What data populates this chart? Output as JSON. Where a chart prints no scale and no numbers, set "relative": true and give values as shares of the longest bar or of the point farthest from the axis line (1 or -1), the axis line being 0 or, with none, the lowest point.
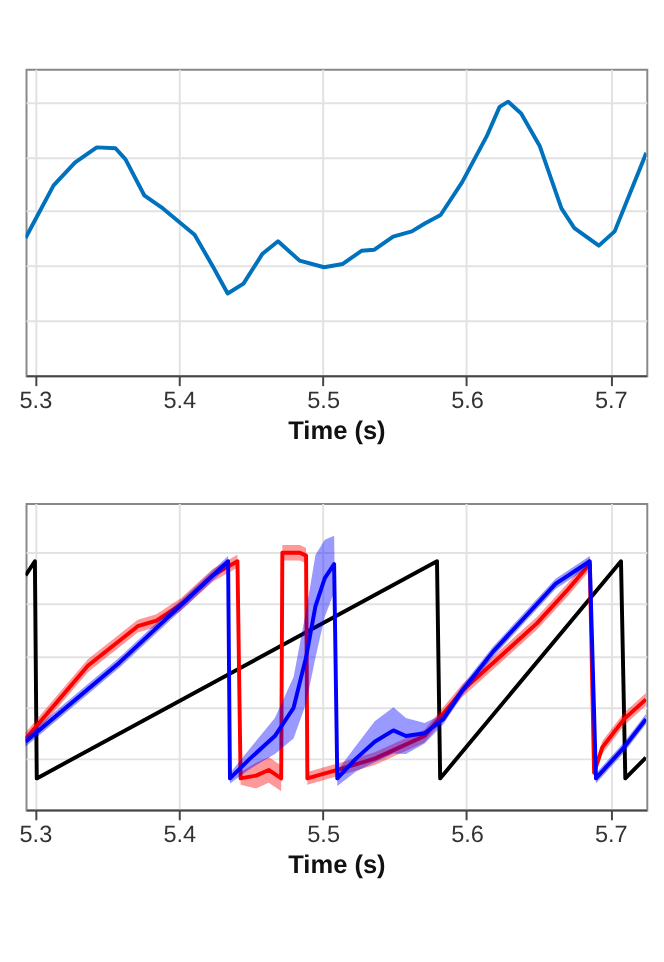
{
  "chart_data": [
    {
      "type": "line",
      "relative": true,
      "xlabel": "Time (s)",
      "xlim": [
        5.2935,
        5.725
      ],
      "xticks": [
        5.3,
        5.4,
        5.5,
        5.6,
        5.7
      ],
      "grid": true,
      "series": [
        {
          "color": "#0072bd",
          "x": [
            5.2935,
            5.302,
            5.313,
            5.328,
            5.343,
            5.356,
            5.363,
            5.376,
            5.389,
            5.411,
            5.424,
            5.434,
            5.445,
            5.458,
            5.469,
            5.484,
            5.501,
            5.514,
            5.527,
            5.536,
            5.549,
            5.562,
            5.571,
            5.582,
            5.597,
            5.614,
            5.623,
            5.629,
            5.638,
            5.651,
            5.666,
            5.675,
            5.692,
            5.703,
            5.714,
            5.725
          ],
          "values": [
            0.502,
            0.586,
            0.694,
            0.778,
            0.833,
            0.83,
            0.789,
            0.658,
            0.61,
            0.514,
            0.395,
            0.299,
            0.335,
            0.443,
            0.49,
            0.419,
            0.395,
            0.407,
            0.455,
            0.459,
            0.507,
            0.526,
            0.555,
            0.586,
            0.706,
            0.873,
            0.981,
            1.0,
            0.957,
            0.837,
            0.61,
            0.538,
            0.474,
            0.526,
            0.67,
            0.813
          ]
        }
      ]
    },
    {
      "type": "line",
      "relative": true,
      "xlabel": "Time (s)",
      "xlim": [
        5.2935,
        5.725
      ],
      "xticks": [
        5.3,
        5.4,
        5.5,
        5.6,
        5.7
      ],
      "grid": true,
      "series": [
        {
          "color": "#000000",
          "x": [
            5.2935,
            5.3,
            5.3013,
            5.5795,
            5.5817,
            5.7074,
            5.7104,
            5.7247
          ],
          "values": [
            0.912,
            0.967,
            0.121,
            0.967,
            0.121,
            0.967,
            0.121,
            0.202
          ]
        },
        {
          "color": "#ff0000",
          "x": [
            5.2935,
            5.3368,
            5.3715,
            5.3845,
            5.4018,
            5.4235,
            5.4408,
            5.443,
            5.4538,
            5.4625,
            5.4712,
            5.472,
            5.4842,
            5.4885,
            5.4894,
            5.5102,
            5.5362,
            5.5535,
            5.5709,
            5.5969,
            5.6229,
            5.6489,
            5.6705,
            5.6857,
            5.6887,
            5.6944,
            5.7095,
            5.7247
          ],
          "values": [
            0.275,
            0.56,
            0.714,
            0.736,
            0.8,
            0.912,
            0.967,
            0.121,
            0.132,
            0.154,
            0.121,
            1.0,
            1.0,
            0.989,
            0.121,
            0.154,
            0.198,
            0.242,
            0.286,
            0.462,
            0.593,
            0.725,
            0.857,
            0.956,
            0.143,
            0.242,
            0.352,
            0.429
          ],
          "lower": [
            0.25,
            0.535,
            0.689,
            0.711,
            0.775,
            0.887,
            0.942,
            0.096,
            0.082,
            0.104,
            0.071,
            0.97,
            0.97,
            0.959,
            0.096,
            0.129,
            0.173,
            0.217,
            0.261,
            0.437,
            0.568,
            0.7,
            0.832,
            0.931,
            0.118,
            0.217,
            0.327,
            0.404
          ],
          "upper": [
            0.3,
            0.585,
            0.739,
            0.761,
            0.825,
            0.937,
            0.992,
            0.146,
            0.182,
            0.204,
            0.171,
            1.03,
            1.03,
            1.019,
            0.146,
            0.179,
            0.223,
            0.267,
            0.311,
            0.487,
            0.618,
            0.75,
            0.882,
            0.981,
            0.168,
            0.267,
            0.377,
            0.454
          ]
        },
        {
          "color": "#0000ff",
          "x": [
            5.2935,
            5.3585,
            5.4343,
            5.4356,
            5.4495,
            5.4668,
            5.4798,
            5.4885,
            5.495,
            5.5015,
            5.508,
            5.5102,
            5.5232,
            5.5362,
            5.5492,
            5.5579,
            5.5709,
            5.5839,
            5.5969,
            5.6185,
            5.6402,
            5.6619,
            5.6857,
            5.69,
            5.7095,
            5.7247
          ],
          "values": [
            0.264,
            0.571,
            0.967,
            0.121,
            0.198,
            0.286,
            0.396,
            0.593,
            0.791,
            0.901,
            0.956,
            0.121,
            0.198,
            0.264,
            0.308,
            0.286,
            0.297,
            0.352,
            0.462,
            0.615,
            0.747,
            0.879,
            0.967,
            0.121,
            0.242,
            0.352
          ],
          "lower": [
            0.244,
            0.551,
            0.947,
            0.101,
            0.158,
            0.216,
            0.276,
            0.413,
            0.591,
            0.751,
            0.846,
            0.091,
            0.148,
            0.184,
            0.218,
            0.216,
            0.257,
            0.332,
            0.442,
            0.595,
            0.727,
            0.859,
            0.947,
            0.101,
            0.222,
            0.332
          ],
          "upper": [
            0.284,
            0.591,
            0.987,
            0.141,
            0.238,
            0.356,
            0.516,
            0.773,
            0.991,
            1.051,
            1.066,
            0.151,
            0.248,
            0.344,
            0.398,
            0.356,
            0.337,
            0.372,
            0.482,
            0.635,
            0.767,
            0.899,
            0.987,
            0.141,
            0.262,
            0.372
          ]
        }
      ]
    }
  ]
}
